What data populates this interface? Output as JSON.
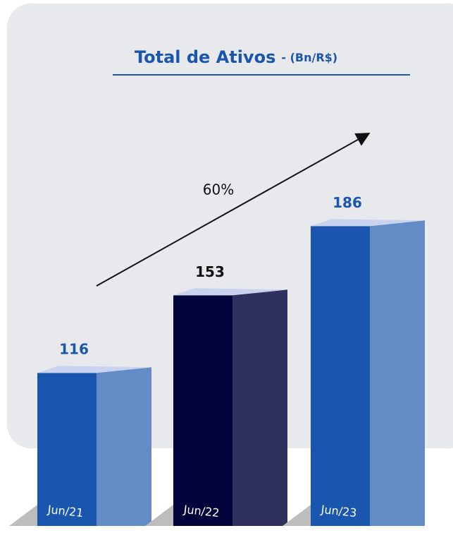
{
  "chart_data": {
    "type": "bar3d",
    "title": "Total de Ativos",
    "subtitle": "- (Bn/R$)",
    "annotation": "60%",
    "categories": [
      "Jun/21",
      "Jun/22",
      "Jun/23"
    ],
    "values": [
      116,
      153,
      186
    ],
    "colors": [
      "#1a56ad",
      "#02033a",
      "#1a56ad"
    ],
    "label_colors": [
      "#1a56ad",
      "#111111",
      "#1a56ad"
    ]
  }
}
